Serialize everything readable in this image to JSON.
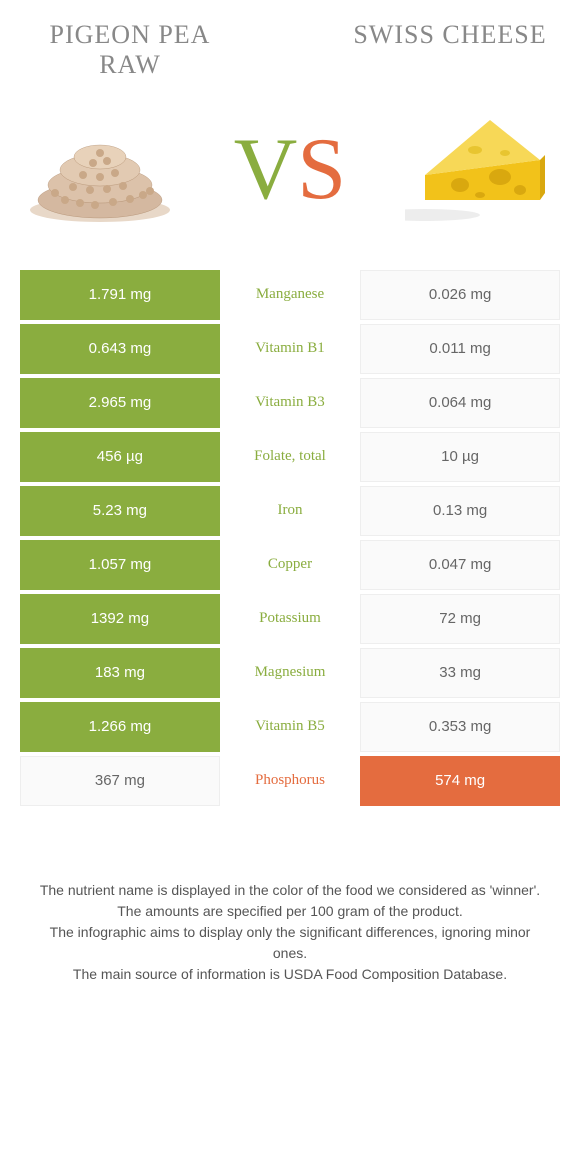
{
  "colors": {
    "left": "#8aad3f",
    "right": "#e46c3f",
    "title": "#888888",
    "text": "#555555",
    "bg": "#ffffff",
    "lose_bg": "#fafafa"
  },
  "header": {
    "left_title": "Pigeon pea raw",
    "right_title": "Swiss cheese",
    "vs_v": "V",
    "vs_s": "S"
  },
  "rows": [
    {
      "left": "1.791 mg",
      "label": "Manganese",
      "right": "0.026 mg",
      "winner": "left"
    },
    {
      "left": "0.643 mg",
      "label": "Vitamin B1",
      "right": "0.011 mg",
      "winner": "left"
    },
    {
      "left": "2.965 mg",
      "label": "Vitamin B3",
      "right": "0.064 mg",
      "winner": "left"
    },
    {
      "left": "456 µg",
      "label": "Folate, total",
      "right": "10 µg",
      "winner": "left"
    },
    {
      "left": "5.23 mg",
      "label": "Iron",
      "right": "0.13 mg",
      "winner": "left"
    },
    {
      "left": "1.057 mg",
      "label": "Copper",
      "right": "0.047 mg",
      "winner": "left"
    },
    {
      "left": "1392 mg",
      "label": "Potassium",
      "right": "72 mg",
      "winner": "left"
    },
    {
      "left": "183 mg",
      "label": "Magnesium",
      "right": "33 mg",
      "winner": "left"
    },
    {
      "left": "1.266 mg",
      "label": "Vitamin B5",
      "right": "0.353 mg",
      "winner": "left"
    },
    {
      "left": "367 mg",
      "label": "Phosphorus",
      "right": "574 mg",
      "winner": "right"
    }
  ],
  "footer": {
    "line1": "The nutrient name is displayed in the color of the food we considered as 'winner'.",
    "line2": "The amounts are specified per 100 gram of the product.",
    "line3": "The infographic aims to display only the significant differences, ignoring minor ones.",
    "line4": "The main source of information is USDA Food Composition Database."
  }
}
